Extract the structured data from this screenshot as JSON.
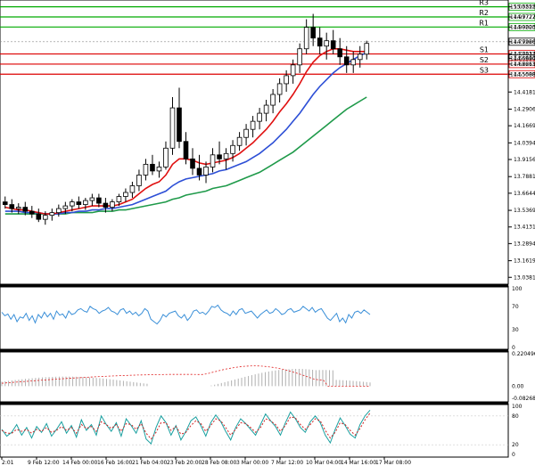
{
  "chart_data": [
    {
      "type": "candlestick",
      "panel": "price",
      "ylim": [
        13.0,
        15.09
      ],
      "y_ticks": [
        "15.05252",
        "14.97727",
        "14.90203",
        "14.79260",
        "14.70137",
        "14.66940",
        "14.62613",
        "14.55088",
        "14.41815",
        "14.29065",
        "14.16690",
        "14.03940",
        "13.91565",
        "13.78815",
        "13.66440",
        "13.53690",
        "13.41315",
        "13.28940",
        "13.16190",
        "13.03815"
      ],
      "x_ticks": [
        "2:01",
        "9 Feb 12:00",
        "14 Feb 00:00",
        "16 Feb 16:00",
        "21 Feb 04:00",
        "23 Feb 20:00",
        "28 Feb 08:00",
        "3 Mar 00:00",
        "7 Mar 12:00",
        "10 Mar 04:00",
        "14 Mar 16:00",
        "17 Mar 08:00"
      ],
      "candles": [
        {
          "o": 13.6,
          "h": 13.64,
          "l": 13.55,
          "c": 13.58
        },
        {
          "o": 13.58,
          "h": 13.62,
          "l": 13.52,
          "c": 13.55
        },
        {
          "o": 13.55,
          "h": 13.59,
          "l": 13.51,
          "c": 13.56
        },
        {
          "o": 13.56,
          "h": 13.6,
          "l": 13.5,
          "c": 13.53
        },
        {
          "o": 13.53,
          "h": 13.57,
          "l": 13.48,
          "c": 13.51
        },
        {
          "o": 13.51,
          "h": 13.55,
          "l": 13.45,
          "c": 13.47
        },
        {
          "o": 13.47,
          "h": 13.53,
          "l": 13.43,
          "c": 13.5
        },
        {
          "o": 13.5,
          "h": 13.55,
          "l": 13.46,
          "c": 13.52
        },
        {
          "o": 13.52,
          "h": 13.58,
          "l": 13.49,
          "c": 13.55
        },
        {
          "o": 13.55,
          "h": 13.6,
          "l": 13.51,
          "c": 13.57
        },
        {
          "o": 13.57,
          "h": 13.62,
          "l": 13.53,
          "c": 13.6
        },
        {
          "o": 13.6,
          "h": 13.64,
          "l": 13.55,
          "c": 13.58
        },
        {
          "o": 13.58,
          "h": 13.63,
          "l": 13.54,
          "c": 13.61
        },
        {
          "o": 13.61,
          "h": 13.66,
          "l": 13.57,
          "c": 13.63
        },
        {
          "o": 13.63,
          "h": 13.66,
          "l": 13.56,
          "c": 13.59
        },
        {
          "o": 13.59,
          "h": 13.63,
          "l": 13.52,
          "c": 13.56
        },
        {
          "o": 13.56,
          "h": 13.62,
          "l": 13.53,
          "c": 13.6
        },
        {
          "o": 13.6,
          "h": 13.66,
          "l": 13.57,
          "c": 13.64
        },
        {
          "o": 13.64,
          "h": 13.7,
          "l": 13.6,
          "c": 13.67
        },
        {
          "o": 13.67,
          "h": 13.75,
          "l": 13.63,
          "c": 13.72
        },
        {
          "o": 13.72,
          "h": 13.84,
          "l": 13.68,
          "c": 13.8
        },
        {
          "o": 13.8,
          "h": 13.92,
          "l": 13.76,
          "c": 13.88
        },
        {
          "o": 13.88,
          "h": 13.95,
          "l": 13.8,
          "c": 13.83
        },
        {
          "o": 13.83,
          "h": 13.9,
          "l": 13.78,
          "c": 13.86
        },
        {
          "o": 13.86,
          "h": 14.05,
          "l": 13.84,
          "c": 14.0
        },
        {
          "o": 14.0,
          "h": 14.38,
          "l": 13.95,
          "c": 14.3
        },
        {
          "o": 14.3,
          "h": 14.45,
          "l": 14.0,
          "c": 14.05
        },
        {
          "o": 14.05,
          "h": 14.12,
          "l": 13.88,
          "c": 13.92
        },
        {
          "o": 13.92,
          "h": 14.0,
          "l": 13.8,
          "c": 13.85
        },
        {
          "o": 13.85,
          "h": 13.95,
          "l": 13.76,
          "c": 13.8
        },
        {
          "o": 13.8,
          "h": 13.9,
          "l": 13.74,
          "c": 13.86
        },
        {
          "o": 13.86,
          "h": 14.0,
          "l": 13.82,
          "c": 13.95
        },
        {
          "o": 13.95,
          "h": 14.05,
          "l": 13.88,
          "c": 13.92
        },
        {
          "o": 13.92,
          "h": 14.0,
          "l": 13.84,
          "c": 13.96
        },
        {
          "o": 13.96,
          "h": 14.06,
          "l": 13.9,
          "c": 14.02
        },
        {
          "o": 14.02,
          "h": 14.12,
          "l": 13.98,
          "c": 14.08
        },
        {
          "o": 14.08,
          "h": 14.18,
          "l": 14.02,
          "c": 14.14
        },
        {
          "o": 14.14,
          "h": 14.24,
          "l": 14.08,
          "c": 14.2
        },
        {
          "o": 14.2,
          "h": 14.3,
          "l": 14.14,
          "c": 14.26
        },
        {
          "o": 14.26,
          "h": 14.36,
          "l": 14.2,
          "c": 14.32
        },
        {
          "o": 14.32,
          "h": 14.44,
          "l": 14.26,
          "c": 14.4
        },
        {
          "o": 14.4,
          "h": 14.52,
          "l": 14.34,
          "c": 14.48
        },
        {
          "o": 14.48,
          "h": 14.58,
          "l": 14.42,
          "c": 14.54
        },
        {
          "o": 14.54,
          "h": 14.66,
          "l": 14.48,
          "c": 14.62
        },
        {
          "o": 14.62,
          "h": 14.78,
          "l": 14.56,
          "c": 14.74
        },
        {
          "o": 14.74,
          "h": 14.96,
          "l": 14.7,
          "c": 14.9
        },
        {
          "o": 14.9,
          "h": 15.0,
          "l": 14.76,
          "c": 14.82
        },
        {
          "o": 14.82,
          "h": 14.9,
          "l": 14.7,
          "c": 14.76
        },
        {
          "o": 14.76,
          "h": 14.86,
          "l": 14.66,
          "c": 14.8
        },
        {
          "o": 14.8,
          "h": 14.88,
          "l": 14.7,
          "c": 14.74
        },
        {
          "o": 14.74,
          "h": 14.82,
          "l": 14.62,
          "c": 14.68
        },
        {
          "o": 14.68,
          "h": 14.76,
          "l": 14.56,
          "c": 14.62
        },
        {
          "o": 14.62,
          "h": 14.72,
          "l": 14.56,
          "c": 14.66
        },
        {
          "o": 14.66,
          "h": 14.76,
          "l": 14.6,
          "c": 14.7
        },
        {
          "o": 14.7,
          "h": 14.8,
          "l": 14.66,
          "c": 14.78
        }
      ],
      "ma_red": [
        13.56,
        13.55,
        13.54,
        13.54,
        13.53,
        13.52,
        13.51,
        13.51,
        13.52,
        13.53,
        13.54,
        13.55,
        13.56,
        13.57,
        13.57,
        13.57,
        13.57,
        13.58,
        13.6,
        13.62,
        13.66,
        13.7,
        13.73,
        13.75,
        13.8,
        13.88,
        13.92,
        13.92,
        13.91,
        13.89,
        13.88,
        13.89,
        13.9,
        13.91,
        13.93,
        13.96,
        14.0,
        14.04,
        14.09,
        14.14,
        14.2,
        14.27,
        14.33,
        14.4,
        14.48,
        14.57,
        14.64,
        14.69,
        14.72,
        14.74,
        14.74,
        14.73,
        14.72,
        14.72,
        14.72
      ],
      "ma_blue": [
        13.53,
        13.53,
        13.53,
        13.52,
        13.52,
        13.52,
        13.51,
        13.51,
        13.51,
        13.52,
        13.52,
        13.53,
        13.53,
        13.54,
        13.54,
        13.55,
        13.55,
        13.56,
        13.57,
        13.58,
        13.6,
        13.62,
        13.64,
        13.66,
        13.68,
        13.72,
        13.75,
        13.77,
        13.78,
        13.79,
        13.8,
        13.81,
        13.83,
        13.84,
        13.86,
        13.88,
        13.9,
        13.93,
        13.96,
        14.0,
        14.04,
        14.09,
        14.14,
        14.2,
        14.26,
        14.33,
        14.4,
        14.46,
        14.51,
        14.56,
        14.6,
        14.63,
        14.66,
        14.69,
        14.71
      ],
      "ma_green": [
        13.51,
        13.51,
        13.51,
        13.51,
        13.51,
        13.51,
        13.51,
        13.51,
        13.51,
        13.51,
        13.52,
        13.52,
        13.52,
        13.52,
        13.53,
        13.53,
        13.53,
        13.54,
        13.54,
        13.55,
        13.56,
        13.57,
        13.58,
        13.59,
        13.6,
        13.62,
        13.63,
        13.65,
        13.66,
        13.67,
        13.68,
        13.7,
        13.71,
        13.72,
        13.74,
        13.76,
        13.78,
        13.8,
        13.82,
        13.85,
        13.88,
        13.91,
        13.94,
        13.97,
        14.01,
        14.05,
        14.09,
        14.13,
        14.17,
        14.21,
        14.25,
        14.29,
        14.32,
        14.35,
        14.38
      ],
      "levels": [
        {
          "name": "R3",
          "value": 15.05252,
          "color": "#00aa00"
        },
        {
          "name": "R2",
          "value": 14.97727,
          "color": "#00aa00"
        },
        {
          "name": "R1",
          "value": 14.90203,
          "color": "#00aa00"
        },
        {
          "name": "S1",
          "value": 14.70137,
          "color": "#dd0000"
        },
        {
          "name": "S2",
          "value": 14.62613,
          "color": "#dd0000"
        },
        {
          "name": "S3",
          "value": 14.55088,
          "color": "#dd0000"
        }
      ],
      "current": {
        "value": 14.7926,
        "label": "14.79260"
      },
      "box_labels": [
        {
          "text": "15.05252",
          "value": 15.05252,
          "color": "#00aa00"
        },
        {
          "text": "14.97727",
          "value": 14.97727,
          "color": "#00aa00"
        },
        {
          "text": "14.90203",
          "value": 14.90203,
          "color": "#00aa00"
        },
        {
          "text": "14.79260",
          "value": 14.7926,
          "color": "#000000"
        },
        {
          "text": "14.70137",
          "value": 14.70137,
          "color": "#dd0000"
        },
        {
          "text": "14.66940",
          "value": 14.6694,
          "color": "#000000"
        },
        {
          "text": "14.62613",
          "value": 14.62613,
          "color": "#dd0000"
        },
        {
          "text": "14.55088",
          "value": 14.55088,
          "color": "#dd0000"
        }
      ]
    },
    {
      "type": "line",
      "panel": "oscillator-1",
      "ylim": [
        0,
        100
      ],
      "y_ticks": [
        "100",
        "70",
        "30",
        "0"
      ],
      "series": [
        {
          "values": [
            60,
            54,
            57,
            48,
            56,
            44,
            52,
            50,
            58,
            46,
            54,
            42,
            56,
            50,
            60,
            52,
            58,
            48,
            62,
            55,
            57,
            50,
            62,
            56,
            58,
            64,
            66,
            62,
            60,
            70,
            66,
            64,
            58,
            62,
            64,
            68,
            62,
            60,
            56,
            64,
            66,
            58,
            62,
            56,
            60,
            54,
            58,
            66,
            62,
            48,
            44,
            40,
            46,
            56,
            52,
            58,
            60,
            62,
            54,
            50,
            56,
            46,
            52,
            62,
            64,
            58,
            60,
            56,
            62,
            70,
            68,
            72,
            64,
            60,
            58,
            54,
            62,
            56,
            64,
            66,
            58,
            60,
            62,
            56,
            50,
            56,
            60,
            64,
            58,
            60,
            66,
            62,
            56,
            58,
            64,
            66,
            60,
            62,
            64,
            70,
            66,
            62,
            68,
            60,
            64,
            66,
            58,
            50,
            46,
            52,
            58,
            44,
            50,
            42,
            56,
            50,
            60,
            62,
            58,
            64,
            60,
            56
          ]
        }
      ]
    },
    {
      "type": "bar",
      "panel": "oscillator-2",
      "ylim": [
        -0.082688,
        0.220496
      ],
      "y_ticks": [
        "0.220496",
        "0.00",
        "-0.082688"
      ]
    },
    {
      "type": "line",
      "panel": "oscillator-3",
      "ylim": [
        0,
        100
      ],
      "y_ticks": [
        "100",
        "80",
        "20",
        "0"
      ],
      "series": [
        {
          "values": [
            52,
            38,
            46,
            62,
            40,
            56,
            34,
            58,
            46,
            64,
            38,
            52,
            68,
            44,
            60,
            36,
            72,
            50,
            62,
            40,
            80,
            62,
            48,
            66,
            38,
            74,
            60,
            44,
            70,
            32,
            22,
            56,
            80,
            66,
            40,
            60,
            30,
            48,
            70,
            78,
            60,
            38,
            66,
            82,
            68,
            48,
            30,
            56,
            74,
            64,
            52,
            40,
            62,
            84,
            70,
            58,
            40,
            66,
            88,
            74,
            56,
            46,
            68,
            80,
            66,
            40,
            24,
            52,
            76,
            60,
            42,
            34,
            62,
            80,
            92
          ]
        },
        {
          "values": [
            50,
            44,
            44,
            52,
            48,
            52,
            44,
            52,
            48,
            56,
            46,
            50,
            58,
            50,
            56,
            44,
            62,
            54,
            58,
            48,
            68,
            62,
            54,
            62,
            48,
            64,
            62,
            52,
            64,
            44,
            32,
            46,
            66,
            66,
            50,
            58,
            42,
            46,
            60,
            70,
            64,
            48,
            60,
            74,
            70,
            56,
            40,
            52,
            66,
            64,
            56,
            46,
            56,
            74,
            70,
            62,
            48,
            60,
            78,
            76,
            62,
            52,
            62,
            74,
            70,
            50,
            34,
            46,
            66,
            62,
            50,
            40,
            54,
            72,
            86
          ]
        }
      ]
    }
  ]
}
